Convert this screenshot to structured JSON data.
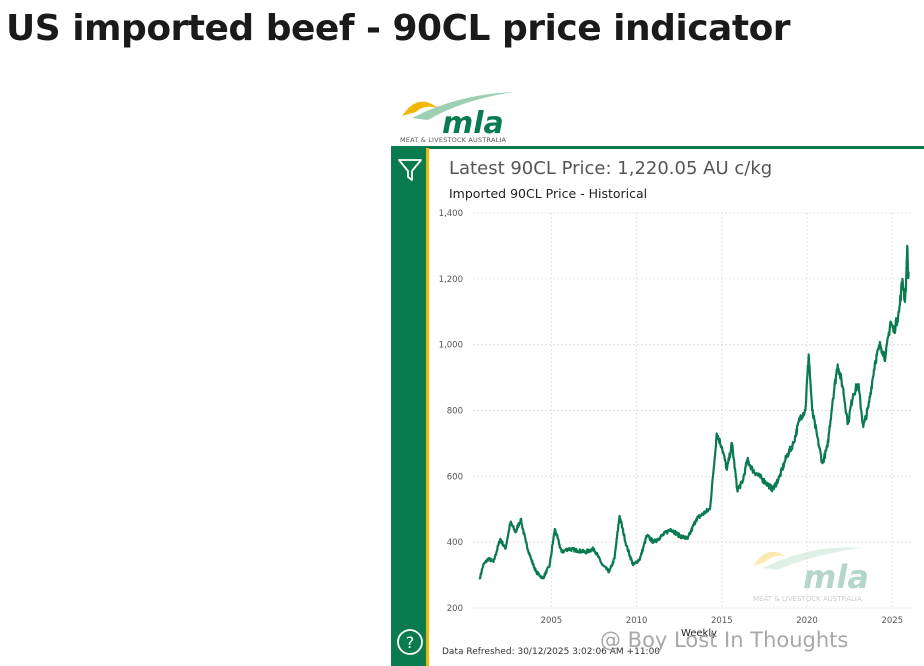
{
  "page": {
    "title": "US imported beef - 90CL price indicator"
  },
  "logo": {
    "wordmark": "mla",
    "tagline": "MEAT & LIVESTOCK AUSTRALIA"
  },
  "report": {
    "latest_price": "Latest 90CL Price: 1,220.05 AU c/kg",
    "chart_title": "Imported 90CL Price - Historical",
    "refreshed": "Data Refreshed: 30/12/2025 3:02:06 AM +11:00",
    "icons": {
      "filter": "filter-icon",
      "help": "help-icon"
    }
  },
  "watermark": {
    "text": "@ Boy Lost In Thoughts"
  },
  "colors": {
    "line": "#0a7a4f",
    "brand_green": "#0a7a4f",
    "accent_yellow": "#f2b705",
    "grid": "#d9d9d9"
  },
  "chart_data": {
    "type": "line",
    "title": "Imported 90CL Price - Historical",
    "xlabel": "Weekly",
    "ylabel": "",
    "xlim": [
      2000.4,
      2026.1
    ],
    "ylim": [
      200,
      1400
    ],
    "yticks": [
      200,
      400,
      600,
      800,
      1000,
      1200,
      1400
    ],
    "ytick_labels": [
      "200",
      "400",
      "600",
      "800",
      "1,000",
      "1,200",
      "1,400"
    ],
    "xticks": [
      2005,
      2010,
      2015,
      2020,
      2025
    ],
    "xtick_labels": [
      "2005",
      "2010",
      "2015",
      "2020",
      "2025"
    ],
    "grid": true,
    "series": [
      {
        "x": [
          2000.8,
          2001.0,
          2001.3,
          2001.6,
          2002.0,
          2002.3,
          2002.6,
          2002.9,
          2003.2,
          2003.5,
          2003.8,
          2004.1,
          2004.5,
          2004.9,
          2005.2,
          2005.6,
          2006.0,
          2006.5,
          2007.0,
          2007.5,
          2008.0,
          2008.4,
          2008.7,
          2009.0,
          2009.4,
          2009.8,
          2010.2,
          2010.6,
          2011.0,
          2011.5,
          2012.0,
          2012.5,
          2013.0,
          2013.5,
          2014.0,
          2014.3,
          2014.5,
          2014.7,
          2015.0,
          2015.3,
          2015.6,
          2015.9,
          2016.2,
          2016.5,
          2016.8,
          2017.2,
          2017.6,
          2018.0,
          2018.4,
          2018.8,
          2019.2,
          2019.6,
          2019.9,
          2020.1,
          2020.3,
          2020.6,
          2020.9,
          2021.2,
          2021.5,
          2021.8,
          2022.1,
          2022.4,
          2022.7,
          2023.0,
          2023.3,
          2023.6,
          2024.0,
          2024.3,
          2024.6,
          2024.9,
          2025.1,
          2025.4,
          2025.6,
          2025.75,
          2025.82,
          2025.88,
          2025.92,
          2025.96
        ],
        "y": [
          290,
          330,
          350,
          340,
          410,
          380,
          460,
          430,
          470,
          400,
          350,
          310,
          290,
          330,
          440,
          370,
          380,
          375,
          370,
          380,
          330,
          310,
          350,
          480,
          390,
          330,
          350,
          420,
          400,
          420,
          440,
          420,
          410,
          470,
          490,
          500,
          610,
          730,
          690,
          620,
          700,
          560,
          580,
          650,
          620,
          600,
          580,
          560,
          600,
          660,
          700,
          780,
          800,
          970,
          800,
          720,
          640,
          690,
          830,
          940,
          870,
          760,
          850,
          880,
          750,
          810,
          950,
          1000,
          960,
          1070,
          1040,
          1100,
          1200,
          1130,
          1200,
          1300,
          1220,
          1220
        ]
      }
    ]
  }
}
